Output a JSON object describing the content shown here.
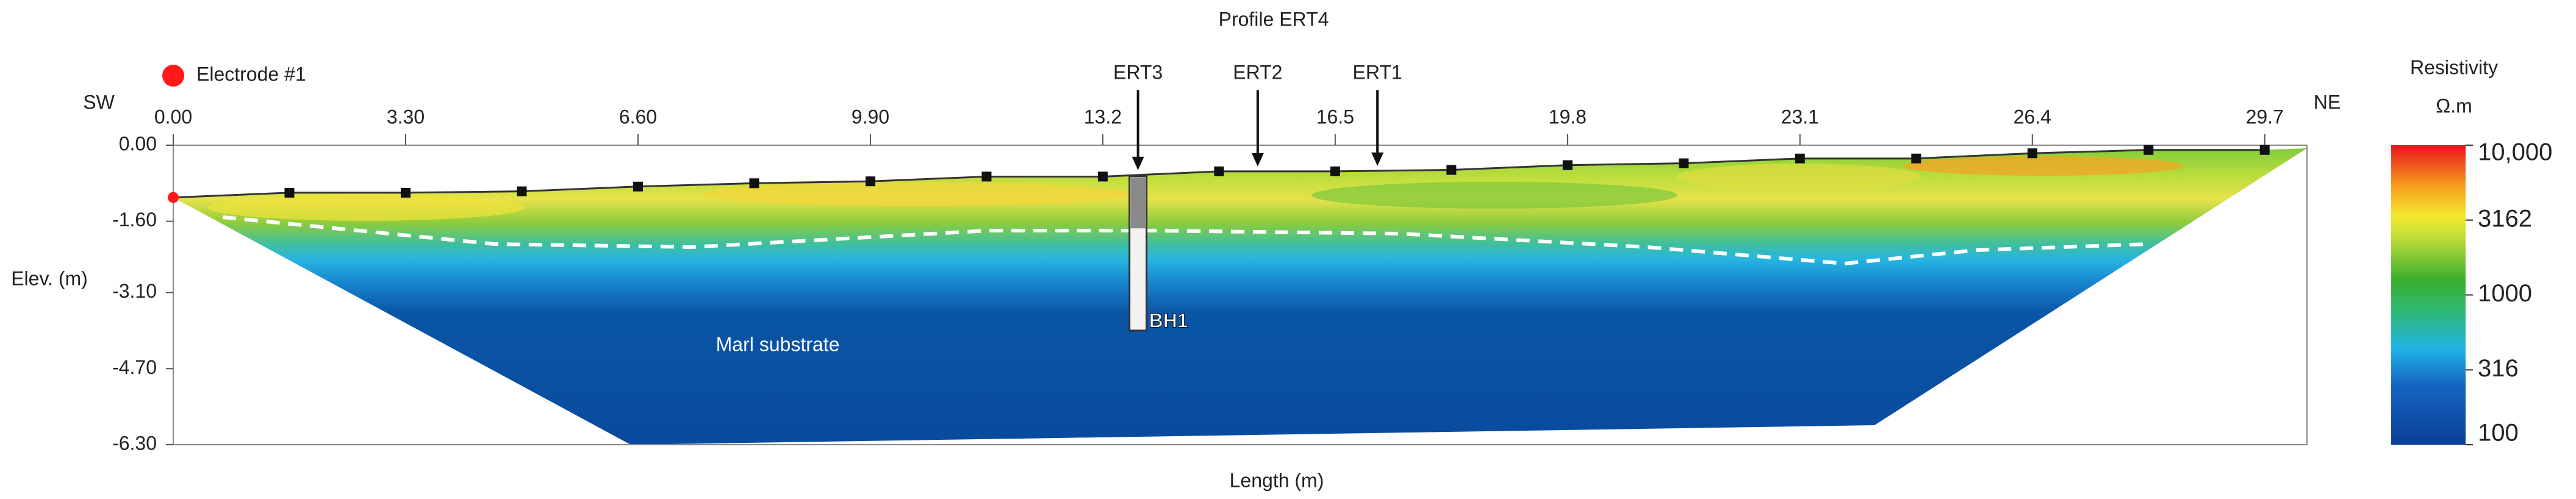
{
  "chart_data": {
    "type": "resistivity-section",
    "title": "Profile ERT4",
    "x_label": "Length (m)",
    "y_label": "Elev. (m)",
    "left_direction": "SW",
    "right_direction": "NE",
    "legend_label": "Electrode #1",
    "annotation": "Marl substrate",
    "xlim": [
      0,
      30.3
    ],
    "ylim": [
      -6.3,
      0
    ],
    "xticks": [
      {
        "value": 0,
        "label": "0.00"
      },
      {
        "value": 3.3,
        "label": "3.30"
      },
      {
        "value": 6.6,
        "label": "6.60"
      },
      {
        "value": 9.9,
        "label": "9.90"
      },
      13.2,
      16.5,
      19.8,
      23.1,
      26.4,
      29.7
    ],
    "yticks": [
      {
        "value": 0,
        "label": "0.00"
      },
      {
        "value": -1.6,
        "label": "-1.60"
      },
      {
        "value": -3.1,
        "label": "-3.10"
      },
      {
        "value": -4.7,
        "label": "-4.70"
      },
      {
        "value": -6.3,
        "label": "-6.30"
      }
    ],
    "electrodes": {
      "x": [
        0,
        1.65,
        3.3,
        4.95,
        6.6,
        8.25,
        9.9,
        11.55,
        13.2,
        14.85,
        16.5,
        18.15,
        19.8,
        21.45,
        23.1,
        24.75,
        26.4,
        28.05,
        29.7
      ],
      "elevation": [
        -1.1,
        -1.0,
        -1.0,
        -0.97,
        -0.87,
        -0.8,
        -0.76,
        -0.66,
        -0.66,
        -0.55,
        -0.55,
        -0.52,
        -0.42,
        -0.38,
        -0.28,
        -0.28,
        -0.17,
        -0.1,
        -0.1
      ],
      "first_color": "#ff1a1a",
      "color": "#111111"
    },
    "profiles": [
      {
        "label": "ERT3",
        "x": 13.7
      },
      {
        "label": "ERT2",
        "x": 15.4
      },
      {
        "label": "ERT1",
        "x": 17.1
      }
    ],
    "boreholes": [
      {
        "label": "BH1",
        "x": 13.7,
        "top": -0.65,
        "bottom": -3.9
      }
    ],
    "colorbar": {
      "title": "Resistivity",
      "unit": "Ω.m",
      "log_scale": true,
      "clim": [
        100,
        10000
      ],
      "ticks": [
        {
          "value": 10000,
          "label": "10,000"
        },
        3162,
        1000,
        316,
        100
      ]
    }
  }
}
